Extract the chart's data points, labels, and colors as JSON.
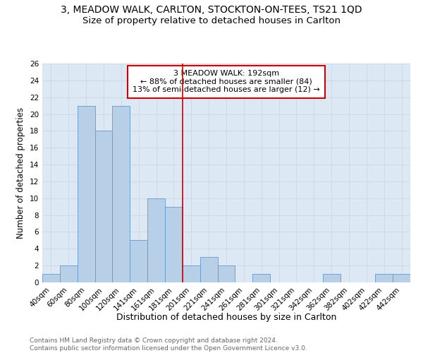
{
  "title": "3, MEADOW WALK, CARLTON, STOCKTON-ON-TEES, TS21 1QD",
  "subtitle": "Size of property relative to detached houses in Carlton",
  "xlabel": "Distribution of detached houses by size in Carlton",
  "ylabel": "Number of detached properties",
  "categories": [
    "40sqm",
    "60sqm",
    "80sqm",
    "100sqm",
    "120sqm",
    "141sqm",
    "161sqm",
    "181sqm",
    "201sqm",
    "221sqm",
    "241sqm",
    "261sqm",
    "281sqm",
    "301sqm",
    "321sqm",
    "342sqm",
    "362sqm",
    "382sqm",
    "402sqm",
    "422sqm",
    "442sqm"
  ],
  "values": [
    1,
    2,
    21,
    18,
    21,
    5,
    10,
    9,
    2,
    3,
    2,
    0,
    1,
    0,
    0,
    0,
    1,
    0,
    0,
    1,
    1
  ],
  "bar_color": "#b8cfe8",
  "bar_edge_color": "#6699cc",
  "vline_x_index": 8,
  "vline_color": "#cc0000",
  "annotation_text": "3 MEADOW WALK: 192sqm\n← 88% of detached houses are smaller (84)\n13% of semi-detached houses are larger (12) →",
  "annotation_box_color": "#ffffff",
  "annotation_box_edge": "#cc0000",
  "grid_color": "#c8d8e8",
  "bg_color": "#dce8f4",
  "ylim": [
    0,
    26
  ],
  "yticks": [
    0,
    2,
    4,
    6,
    8,
    10,
    12,
    14,
    16,
    18,
    20,
    22,
    24,
    26
  ],
  "footer": "Contains HM Land Registry data © Crown copyright and database right 2024.\nContains public sector information licensed under the Open Government Licence v3.0.",
  "title_fontsize": 10,
  "subtitle_fontsize": 9.5,
  "xlabel_fontsize": 9,
  "ylabel_fontsize": 8.5,
  "tick_fontsize": 7.5,
  "annotation_fontsize": 8,
  "footer_fontsize": 6.5
}
